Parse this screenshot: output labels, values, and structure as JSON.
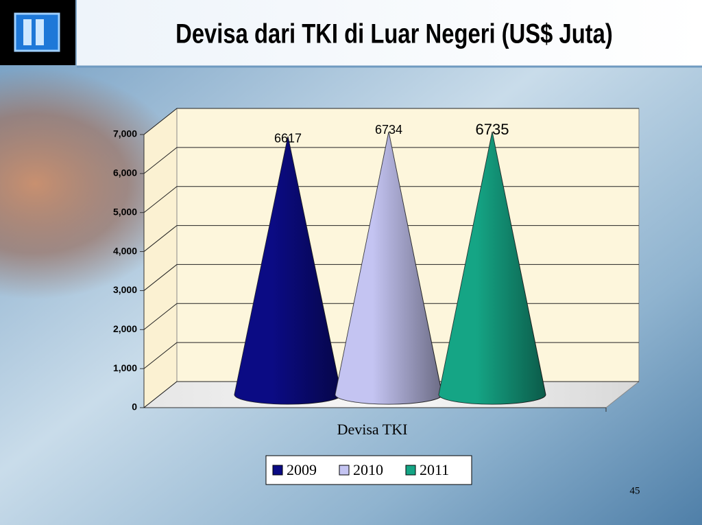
{
  "chart_data": {
    "type": "cone3d",
    "title": "Devisa dari TKI di Luar Negeri (US$ Juta)",
    "x_label": "Devisa TKI",
    "categories": [
      "Devisa TKI"
    ],
    "series": [
      {
        "name": "2009",
        "color": "#0b0b84",
        "values": [
          6617
        ]
      },
      {
        "name": "2010",
        "color": "#c4c4f2",
        "values": [
          6734
        ]
      },
      {
        "name": "2011",
        "color": "#15a585",
        "values": [
          6735
        ]
      }
    ],
    "ylim": [
      0,
      7000
    ],
    "yticks": [
      0,
      {
        "value": 1000,
        "label": "1,000"
      },
      {
        "value": 2000,
        "label": "2,000"
      },
      {
        "value": 3000,
        "label": "3,000"
      },
      {
        "value": 4000,
        "label": "4,000"
      },
      {
        "value": 5000,
        "label": "5,000"
      },
      {
        "value": 6000,
        "label": "6,000"
      },
      {
        "value": 7000,
        "label": "7,000"
      }
    ],
    "grid": true,
    "legend": "bottom",
    "slide_number": "45"
  }
}
